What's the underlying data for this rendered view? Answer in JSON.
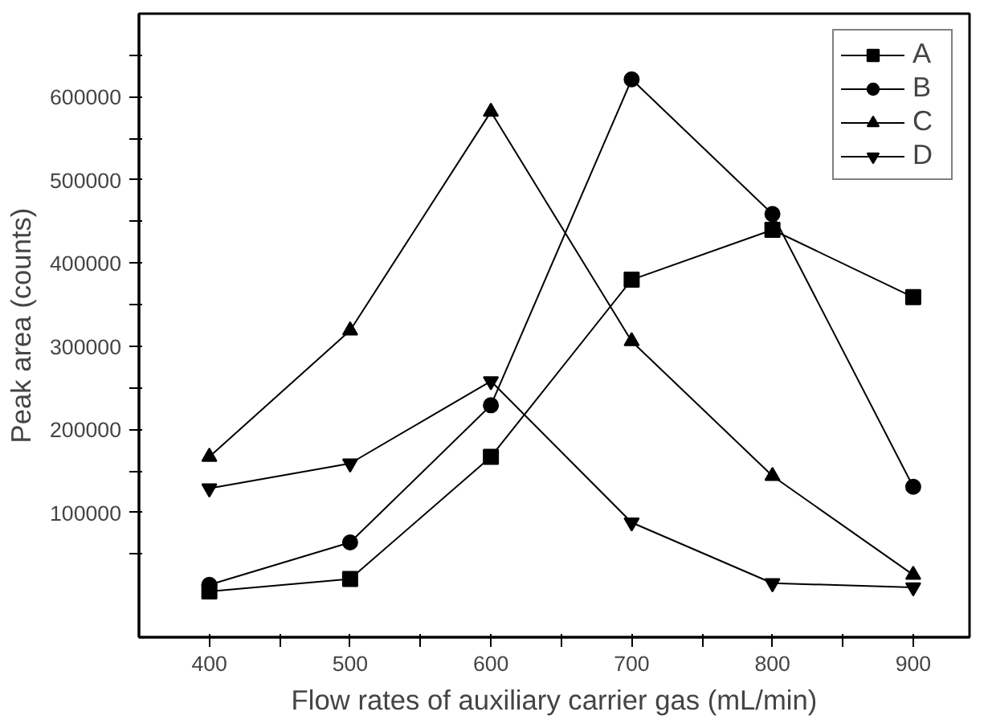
{
  "chart_data": {
    "type": "line",
    "xlabel": "Flow rates of auxiliary carrier gas (mL/min)",
    "ylabel": "Peak area (counts)",
    "x": [
      400,
      500,
      600,
      700,
      800,
      900
    ],
    "series": [
      {
        "name": "A",
        "color": "#000000",
        "marker": "square",
        "values": [
          5000,
          20000,
          167000,
          380000,
          440000,
          359000
        ]
      },
      {
        "name": "B",
        "color": "#000000",
        "marker": "circle",
        "values": [
          13000,
          64000,
          229000,
          621000,
          459000,
          131000
        ]
      },
      {
        "name": "C",
        "color": "#000000",
        "marker": "triangle",
        "values": [
          167000,
          319000,
          582000,
          306000,
          144000,
          25000
        ]
      },
      {
        "name": "D",
        "color": "#000000",
        "marker": "triangle",
        "values": [
          129000,
          159000,
          258000,
          88000,
          15000,
          10000
        ]
      }
    ],
    "xlim": [
      350,
      940
    ],
    "ylim": [
      -50000,
      700000
    ],
    "xticks": [
      400,
      {
        "value": 450,
        "label": null
      },
      500,
      {
        "value": 550,
        "label": null
      },
      600,
      {
        "value": 650,
        "label": null
      },
      700,
      {
        "value": 750,
        "label": null
      },
      800,
      {
        "value": 850,
        "label": null
      },
      900
    ],
    "yticks": [
      {
        "value": 50000,
        "label": null
      },
      100000,
      {
        "value": 150000,
        "label": null
      },
      200000,
      {
        "value": 250000,
        "label": null
      },
      300000,
      {
        "value": 350000,
        "label": null
      },
      400000,
      {
        "value": 450000,
        "label": null
      },
      500000,
      {
        "value": 550000,
        "label": null
      },
      600000,
      {
        "value": 650000,
        "label": null
      }
    ],
    "grid": false,
    "legend": "top right",
    "line_style": "solid"
  }
}
